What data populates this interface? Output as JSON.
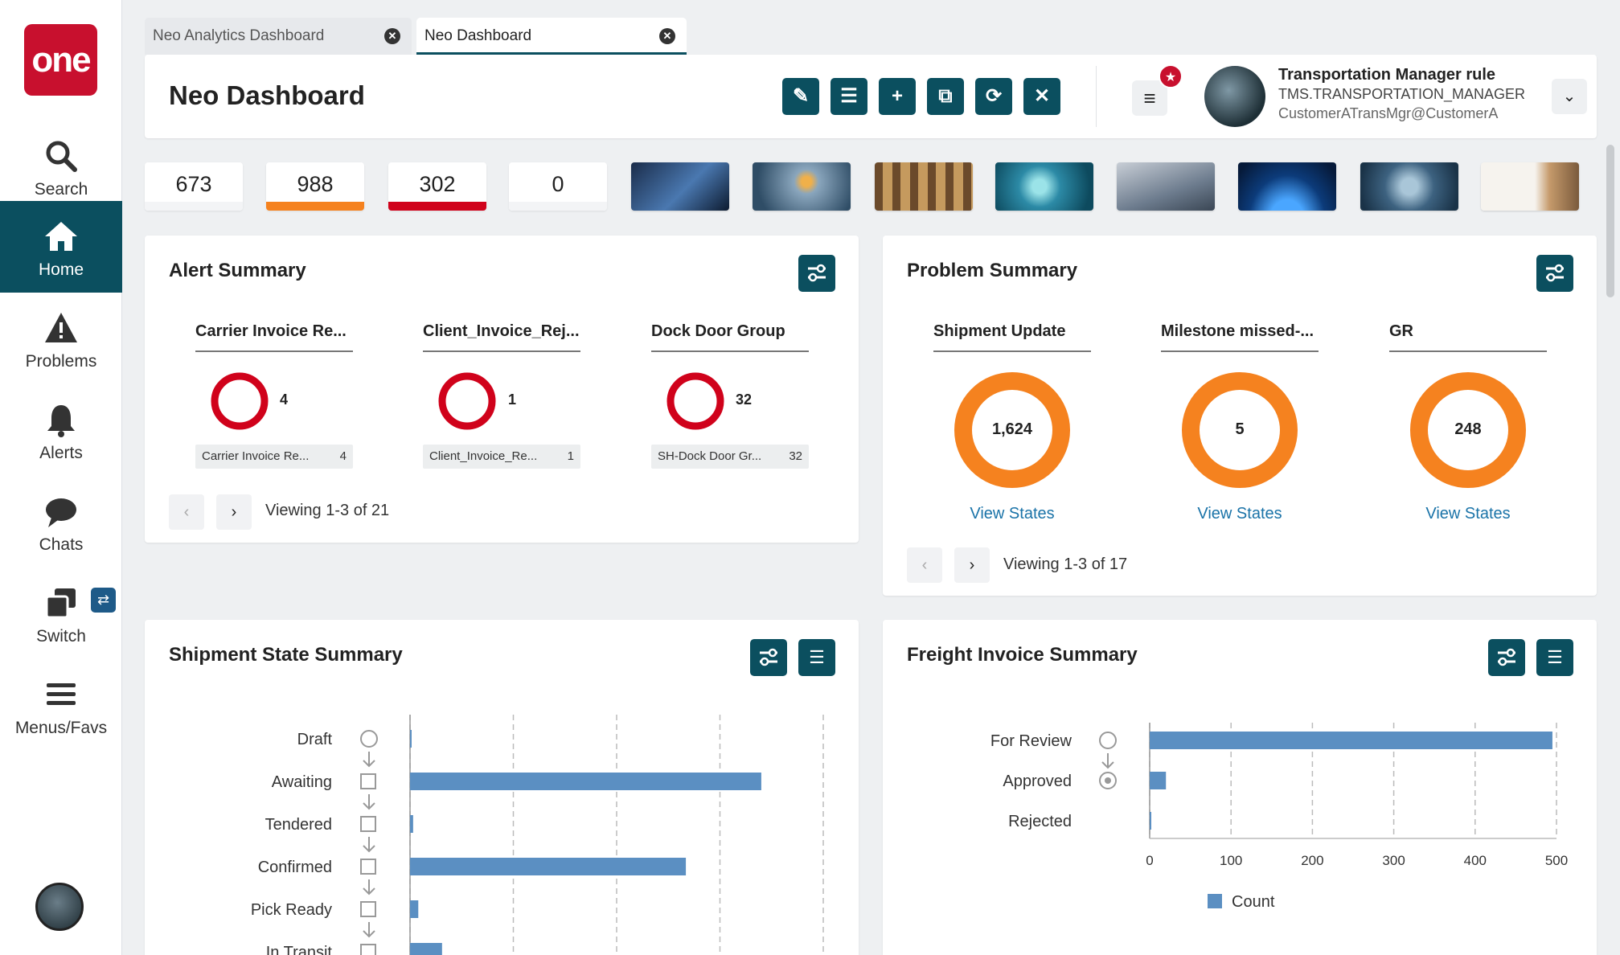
{
  "sidebar": {
    "logo": "one",
    "items": [
      {
        "label": "Search"
      },
      {
        "label": "Home"
      },
      {
        "label": "Problems"
      },
      {
        "label": "Alerts"
      },
      {
        "label": "Chats"
      },
      {
        "label": "Switch"
      },
      {
        "label": "Menus/Favs"
      }
    ],
    "switch_badge": "⇄"
  },
  "tabs": [
    {
      "label": "Neo Analytics Dashboard"
    },
    {
      "label": "Neo Dashboard"
    }
  ],
  "header": {
    "title": "Neo Dashboard",
    "toolbar": [
      {
        "icon": "pencil-icon",
        "glyph": "✎"
      },
      {
        "icon": "list-icon",
        "glyph": "☰"
      },
      {
        "icon": "plus-icon",
        "glyph": "+"
      },
      {
        "icon": "copy-icon",
        "glyph": "⧉"
      },
      {
        "icon": "refresh-icon",
        "glyph": "⟳"
      },
      {
        "icon": "close-icon",
        "glyph": "✕"
      }
    ],
    "menu_glyph": "≡",
    "fav_glyph": "★",
    "user": {
      "name": "Transportation Manager rule",
      "role": "TMS.TRANSPORTATION_MANAGER",
      "email": "CustomerATransMgr@CustomerA"
    },
    "dropdown_glyph": "⌄"
  },
  "kpis": [
    {
      "value": "673",
      "color": "#ffffff"
    },
    {
      "value": "988",
      "color": "#f5821f"
    },
    {
      "value": "302",
      "color": "#d0021b"
    },
    {
      "value": "0",
      "color": "#ffffff"
    }
  ],
  "alert_summary": {
    "title": "Alert Summary",
    "columns": [
      {
        "header": "Carrier Invoice Re...",
        "count": "4",
        "legend": "Carrier Invoice Re...",
        "legend_value": "4"
      },
      {
        "header": "Client_Invoice_Rej...",
        "count": "1",
        "legend": "Client_Invoice_Re...",
        "legend_value": "1"
      },
      {
        "header": "Dock Door Group",
        "count": "32",
        "legend": "SH-Dock Door Gr...",
        "legend_value": "32"
      }
    ],
    "pager": {
      "prev": "‹",
      "next": "›",
      "text": "Viewing 1-3 of 21"
    },
    "ring_color": "#d0021b"
  },
  "problem_summary": {
    "title": "Problem Summary",
    "columns": [
      {
        "header": "Shipment Update",
        "value": "1,624",
        "link": "View States"
      },
      {
        "header": "Milestone missed-...",
        "value": "5",
        "link": "View States"
      },
      {
        "header": "GR",
        "value": "248",
        "link": "View States"
      }
    ],
    "pager": {
      "prev": "‹",
      "next": "›",
      "text": "Viewing 1-3 of 17"
    },
    "ring_color": "#f5821f"
  },
  "shipment_state": {
    "title": "Shipment State Summary",
    "chart_data": {
      "type": "bar",
      "orientation": "horizontal",
      "categories": [
        "Draft",
        "Awaiting",
        "Tendered",
        "Confirmed",
        "Pick Ready",
        "In Transit"
      ],
      "values": [
        1,
        340,
        3,
        267,
        8,
        31
      ],
      "xlim": [
        0,
        400
      ],
      "grid": true,
      "bar_color": "#5b8fc2"
    }
  },
  "freight_invoice": {
    "title": "Freight Invoice Summary",
    "chart_data": {
      "type": "bar",
      "orientation": "horizontal",
      "categories": [
        "For Review",
        "Approved",
        "Rejected"
      ],
      "values": [
        495,
        20,
        1
      ],
      "xlim": [
        0,
        500
      ],
      "xticks": [
        "0",
        "100",
        "200",
        "300",
        "400",
        "500"
      ],
      "grid": true,
      "series": [
        {
          "name": "Count",
          "values": [
            495,
            20,
            1
          ]
        }
      ],
      "legend": "bottom",
      "bar_color": "#5b8fc2"
    }
  }
}
